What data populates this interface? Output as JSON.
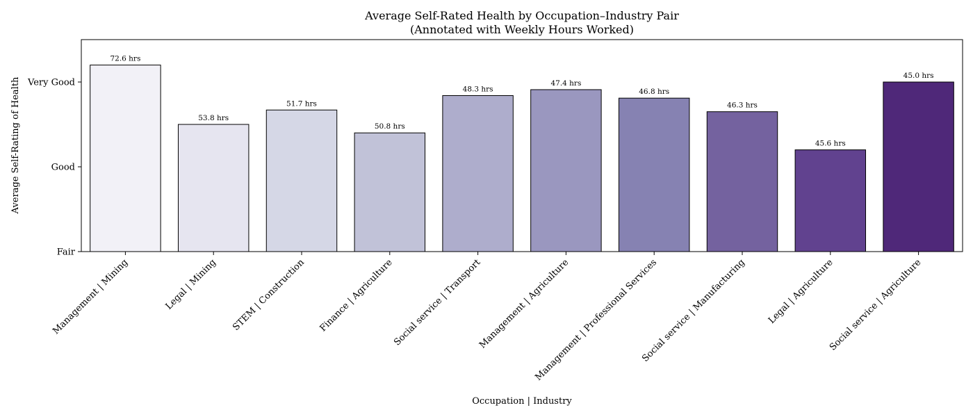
{
  "chart_data": {
    "type": "bar",
    "title": "Average Self-Rated Health by Occupation–Industry Pair",
    "subtitle": "(Annotated with Weekly Hours Worked)",
    "xlabel": "Occupation | Industry",
    "ylabel": "Average Self-Rating of Health",
    "ylim": [
      3.0,
      4.25
    ],
    "yticks": [
      {
        "value": 3.0,
        "label": "Fair"
      },
      {
        "value": 3.5,
        "label": "Good"
      },
      {
        "value": 4.0,
        "label": "Very Good"
      }
    ],
    "categories": [
      "Management | Mining",
      "Legal | Mining",
      "STEM | Construction",
      "Finance | Agriculture",
      "Social service | Transport",
      "Management | Agriculture",
      "Management | Professional Services",
      "Social service | Manufacturing",
      "Legal | Agriculture",
      "Social service | Agriculture"
    ],
    "values": [
      4.1,
      3.75,
      3.835,
      3.7,
      3.92,
      3.955,
      3.905,
      3.825,
      3.6,
      4.0
    ],
    "annotations": [
      "72.6 hrs",
      "53.8 hrs",
      "51.7 hrs",
      "50.8 hrs",
      "48.3 hrs",
      "47.4 hrs",
      "46.8 hrs",
      "46.3 hrs",
      "45.6 hrs",
      "45.0 hrs"
    ],
    "colors": [
      "#f2f1f7",
      "#e6e5f0",
      "#d5d7e6",
      "#c1c2d8",
      "#aeadcc",
      "#9a97bf",
      "#8682b2",
      "#74629f",
      "#61428f",
      "#4f2879"
    ],
    "grid": false,
    "legend": "none"
  }
}
